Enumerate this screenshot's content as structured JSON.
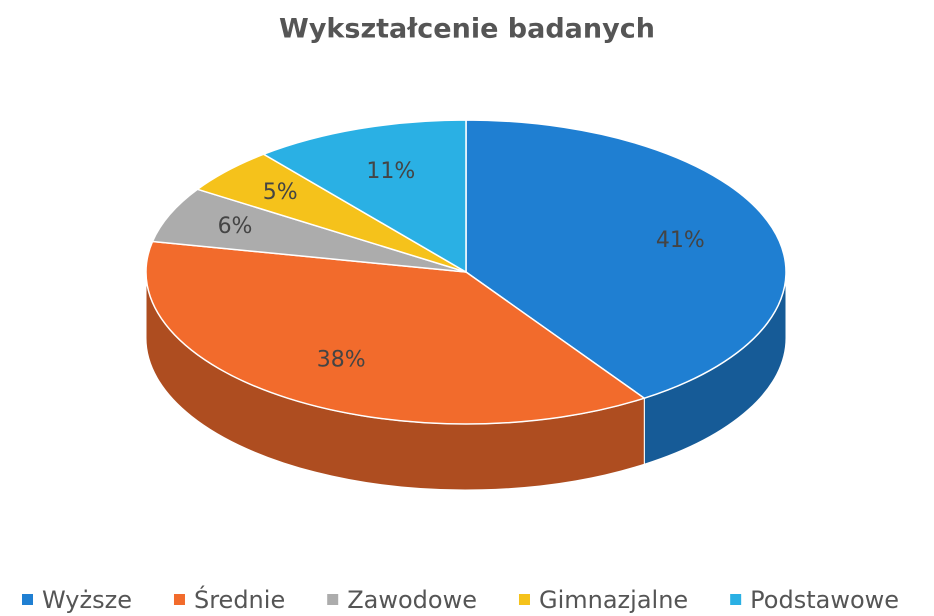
{
  "chart_data": {
    "type": "pie",
    "title": "Wykształcenie badanych",
    "categories": [
      "Wyższe",
      "Średnie",
      "Zawodowe",
      "Gimnazjalne",
      "Podstawowe"
    ],
    "values": [
      41,
      38,
      6,
      5,
      11
    ],
    "value_labels": [
      "41%",
      "38%",
      "6%",
      "5%",
      "11%"
    ],
    "colors": [
      "#1f7fd2",
      "#f26b2c",
      "#acacac",
      "#f5c21b",
      "#2ab0e4"
    ],
    "legend": "bottom"
  }
}
